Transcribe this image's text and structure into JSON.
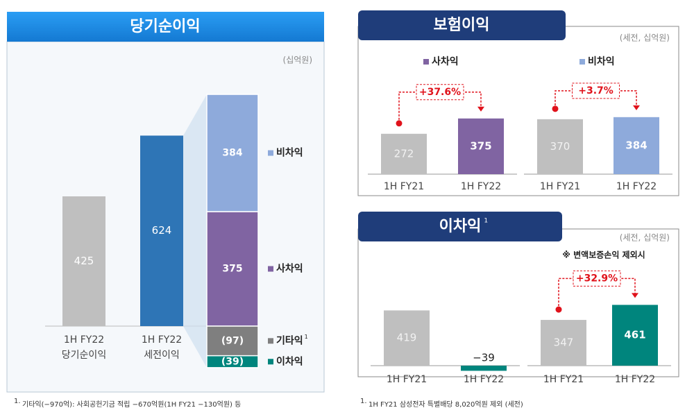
{
  "chart_data": [
    {
      "type": "bar",
      "title": "당기순이익",
      "unit": "(십억원)",
      "categories": [
        "1H FY22",
        "1H FY22"
      ],
      "sublabels": [
        "당기순이익",
        "세전이익"
      ],
      "values": [
        425,
        624
      ],
      "colors": [
        "#bfbfbf",
        "#2e75b6"
      ],
      "breakdown": {
        "type": "stacked-bar",
        "series": [
          {
            "name": "사차익",
            "color": "#8064a2",
            "values": [
              375
            ]
          },
          {
            "name": "비차익",
            "color": "#8eaadb",
            "values": [
              384
            ]
          },
          {
            "name": "기타익",
            "note": "1",
            "color": "#7f7f7f",
            "values": [
              -97
            ],
            "value_labels": [
              "(97)"
            ]
          },
          {
            "name": "이차익",
            "color": "#00857d",
            "values": [
              -39
            ],
            "value_labels": [
              "(39)"
            ]
          }
        ]
      },
      "footnote": {
        "marker": "1.",
        "text": "기타익(−970억): 사회공헌기금 적립 −670억원(1H FY21 −130억원) 등"
      }
    },
    {
      "type": "grouped-bar",
      "title": "보험이익",
      "unit": "(세전, 십억원)",
      "groups": [
        {
          "name": "사차익",
          "categories": [
            "1H FY21",
            "1H FY22"
          ],
          "values": [
            272,
            375
          ],
          "colors": [
            "#bfbfbf",
            "#8064a2"
          ],
          "change": "+37.6%"
        },
        {
          "name": "비차익",
          "categories": [
            "1H FY21",
            "1H FY22"
          ],
          "values": [
            370,
            384
          ],
          "colors": [
            "#bfbfbf",
            "#8eaadb"
          ],
          "change": "+3.7%"
        }
      ]
    },
    {
      "type": "grouped-bar",
      "title": "이차익",
      "note": "1",
      "unit": "(세전, 십억원)",
      "subtitle": "※ 변액보증손익 제외시",
      "groups": [
        {
          "categories": [
            "1H FY21",
            "1H FY22"
          ],
          "values": [
            419,
            -39
          ],
          "value_labels": [
            "419",
            "−39"
          ],
          "colors": [
            "#bfbfbf",
            "#00857d"
          ]
        },
        {
          "categories": [
            "1H FY21",
            "1H FY22"
          ],
          "values": [
            347,
            461
          ],
          "colors": [
            "#bfbfbf",
            "#00857d"
          ],
          "change": "+32.9%"
        }
      ],
      "footnote": {
        "marker": "1.",
        "text": "1H FY21 삼성전자 특별배당 8,020억원 제외 (세전)"
      }
    }
  ]
}
